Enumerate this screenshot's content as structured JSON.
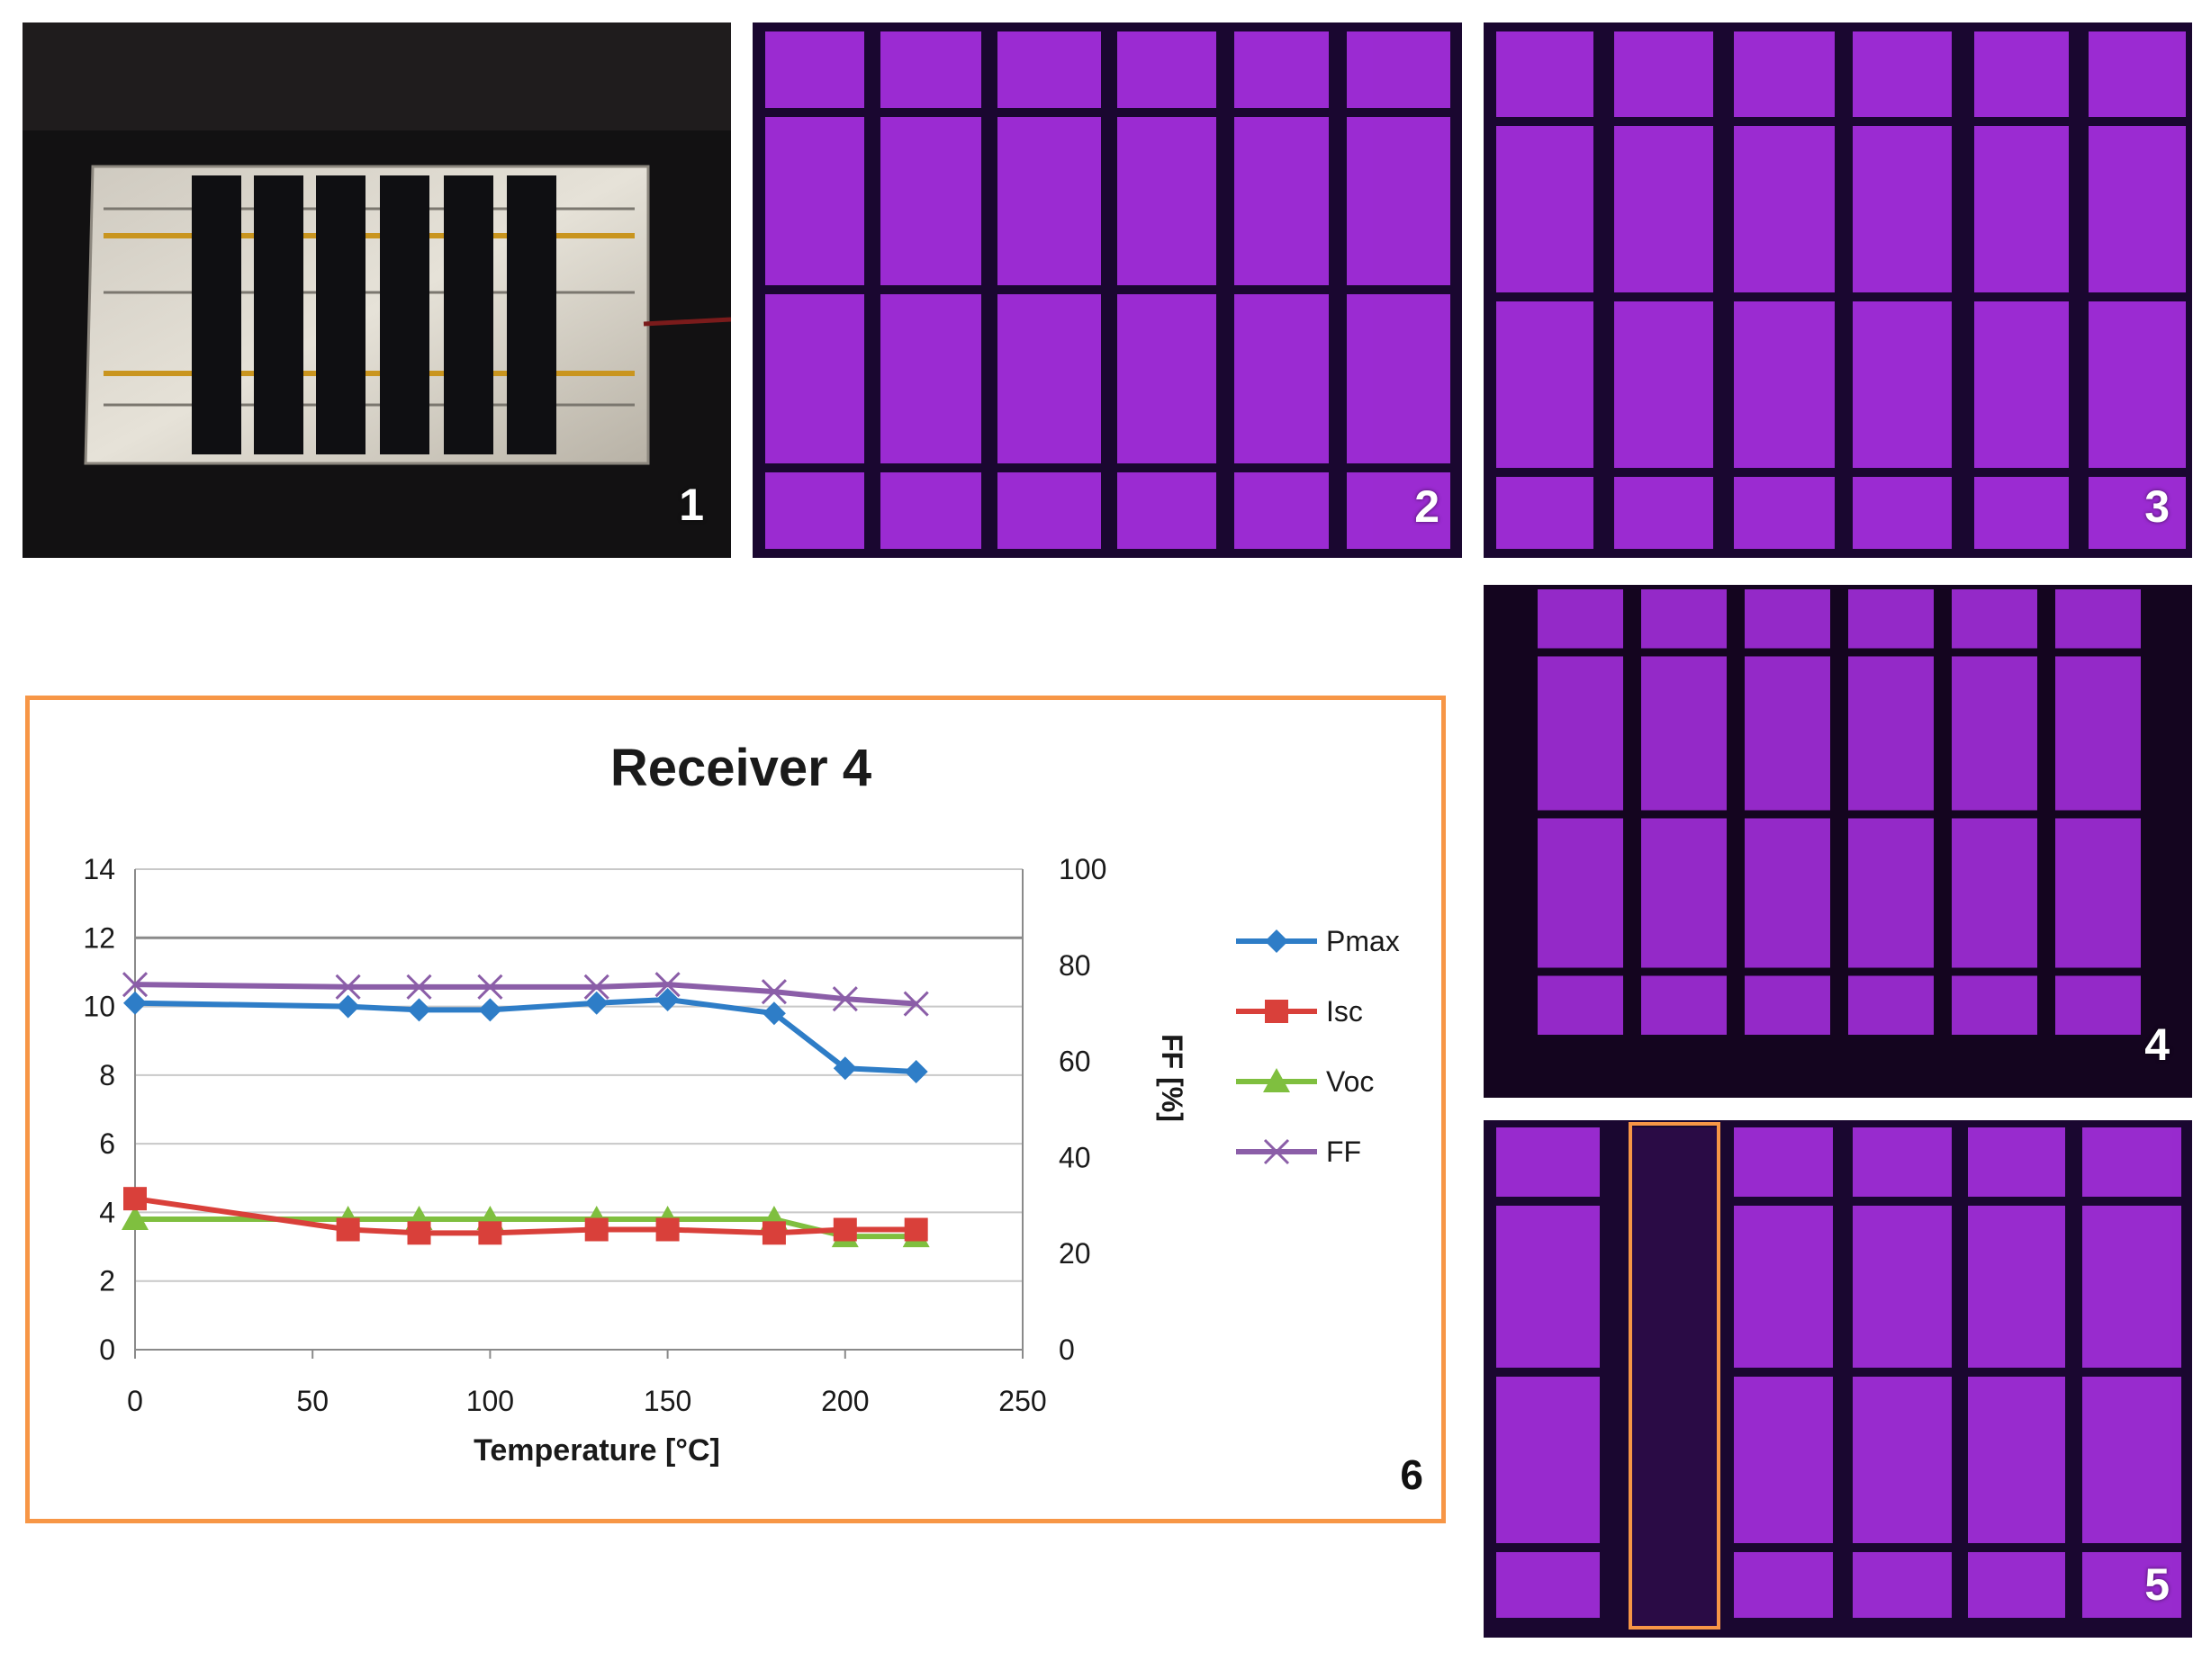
{
  "panels": [
    {
      "number": "1"
    },
    {
      "number": "2"
    },
    {
      "number": "3"
    },
    {
      "number": "4"
    },
    {
      "number": "5"
    },
    {
      "number": "6"
    }
  ],
  "colors": {
    "el_cell": "#a62fe0",
    "el_gap": "#1a0730",
    "highlight_box": "#f79646",
    "pmax": "#2e7dc7",
    "isc": "#d9403a",
    "voc": "#7fbf3f",
    "ff": "#8b5ea8"
  },
  "chart_data": {
    "type": "line",
    "title": "Receiver 4",
    "xlabel": "Temperature [°C]",
    "ylabel": "",
    "y2label": "FF [%]",
    "xlim": [
      0,
      250
    ],
    "ylim": [
      0,
      14
    ],
    "y2lim": [
      0,
      100
    ],
    "x_ticks": [
      "0",
      "50",
      "100",
      "150",
      "200",
      "250"
    ],
    "y_ticks": [
      "0",
      "2",
      "4",
      "6",
      "8",
      "10",
      "12",
      "14"
    ],
    "y2_ticks": [
      "0",
      "20",
      "40",
      "60",
      "80",
      "100"
    ],
    "grid": true,
    "legend_position": "right",
    "series": [
      {
        "name": "Pmax",
        "axis": "left",
        "marker": "diamond",
        "x": [
          0,
          60,
          80,
          100,
          130,
          150,
          180,
          200,
          220
        ],
        "y": [
          10.1,
          10.0,
          9.9,
          9.9,
          10.1,
          10.2,
          9.8,
          8.2,
          8.1
        ]
      },
      {
        "name": "Isc",
        "axis": "left",
        "marker": "square",
        "x": [
          0,
          60,
          80,
          100,
          130,
          150,
          180,
          200,
          220
        ],
        "y": [
          4.4,
          3.5,
          3.4,
          3.4,
          3.5,
          3.5,
          3.4,
          3.5,
          3.5
        ]
      },
      {
        "name": "Voc",
        "axis": "left",
        "marker": "triangle",
        "x": [
          0,
          60,
          80,
          100,
          130,
          150,
          180,
          200,
          220
        ],
        "y": [
          3.8,
          3.8,
          3.8,
          3.8,
          3.8,
          3.8,
          3.8,
          3.3,
          3.3
        ]
      },
      {
        "name": "FF",
        "axis": "right",
        "marker": "x",
        "x": [
          0,
          60,
          80,
          100,
          130,
          150,
          180,
          200,
          220
        ],
        "y": [
          76,
          75.5,
          75.5,
          75.5,
          75.5,
          76,
          74.5,
          73,
          72
        ]
      }
    ]
  }
}
